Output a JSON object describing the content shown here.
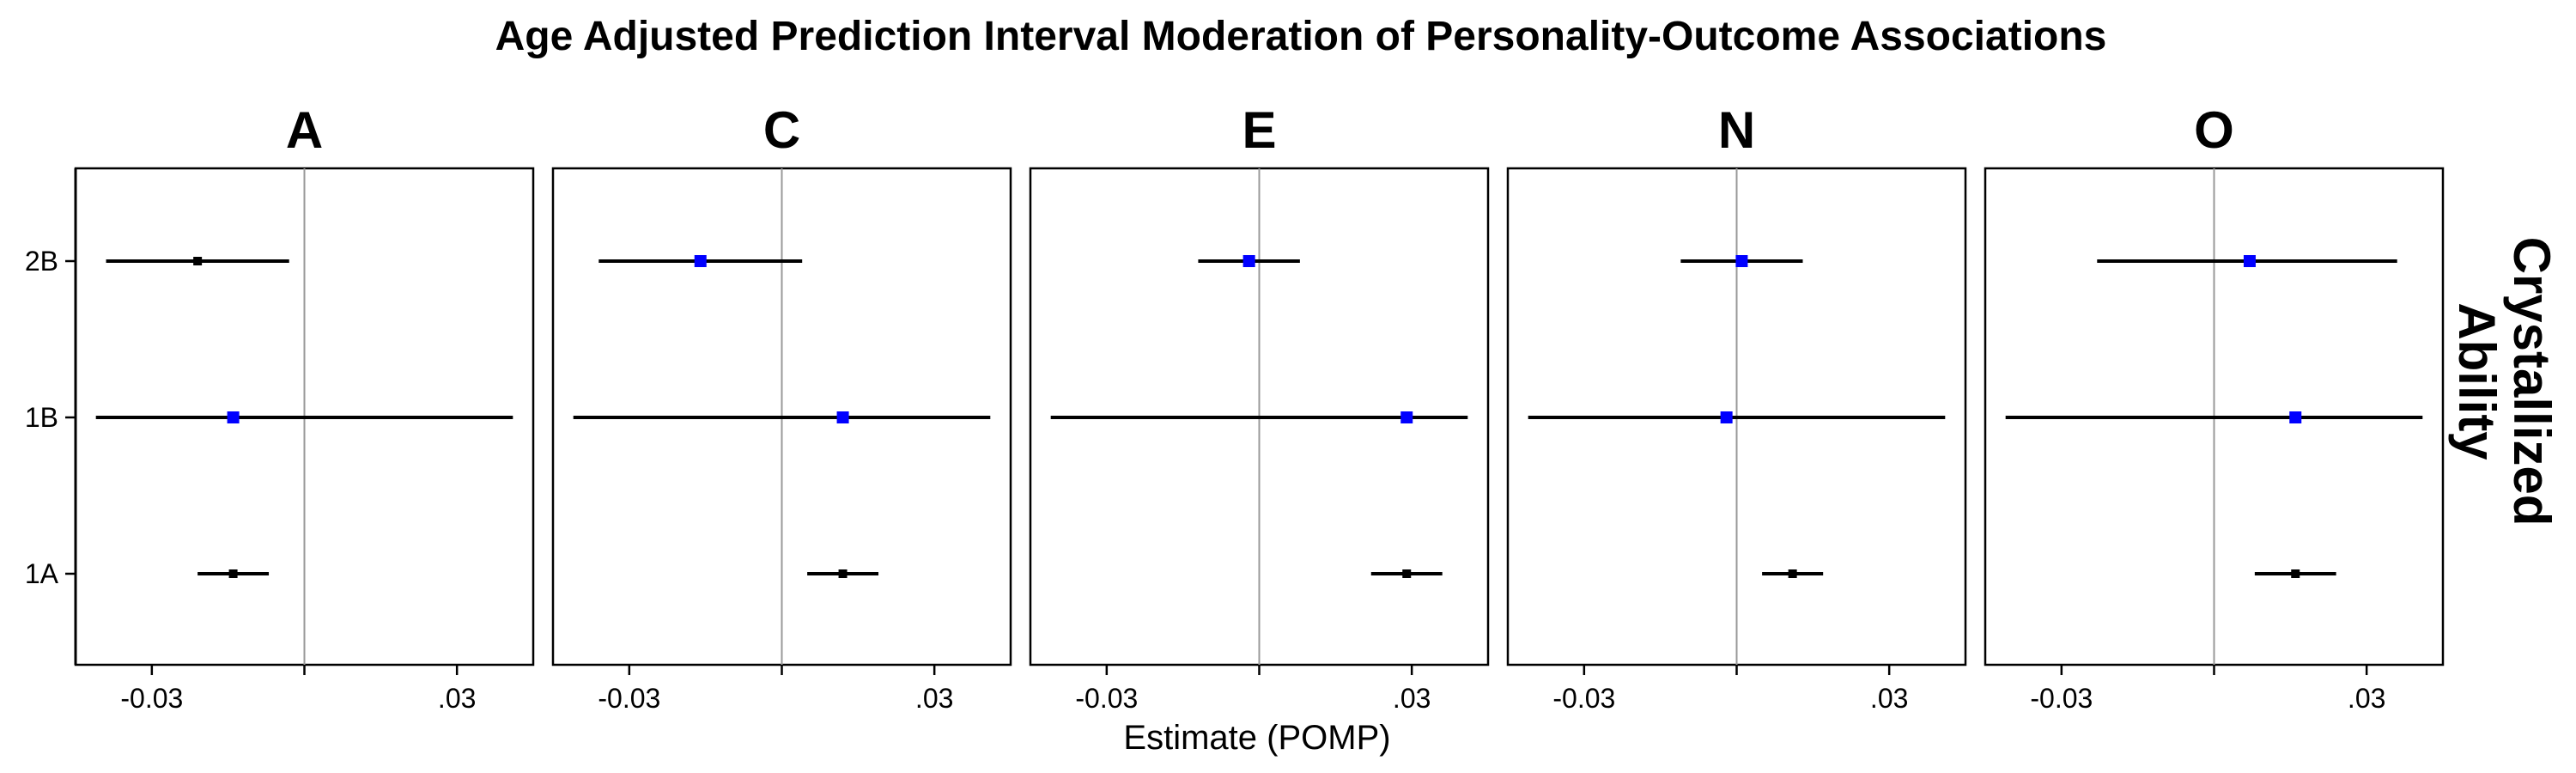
{
  "chart_data": {
    "type": "scatter",
    "subtype": "forest-plot",
    "title": "Age Adjusted Prediction Interval Moderation of Personality-Outcome Associations",
    "xlabel": "Estimate (POMP)",
    "row_label": "Crystallized Ability",
    "x_ticks": [
      {
        "value": -0.03,
        "label": "-0.03"
      },
      {
        "value": 0.03,
        "label": ".03"
      }
    ],
    "xlim": [
      -0.045,
      0.045
    ],
    "categories": [
      "2B",
      "1B",
      "1A"
    ],
    "colors": {
      "highlight": "#0000ff",
      "default": "#000000",
      "ref_line": "#999999"
    },
    "facets": [
      {
        "name": "A",
        "points": [
          {
            "category": "2B",
            "estimate": -0.021,
            "lower": -0.039,
            "upper": -0.003,
            "color": "#000000"
          },
          {
            "category": "1B",
            "estimate": -0.014,
            "lower": -0.041,
            "upper": 0.041,
            "color": "#0000ff"
          },
          {
            "category": "1A",
            "estimate": -0.014,
            "lower": -0.021,
            "upper": -0.007,
            "color": "#000000"
          }
        ]
      },
      {
        "name": "C",
        "points": [
          {
            "category": "2B",
            "estimate": -0.016,
            "lower": -0.036,
            "upper": 0.004,
            "color": "#0000ff"
          },
          {
            "category": "1B",
            "estimate": 0.012,
            "lower": -0.041,
            "upper": 0.041,
            "color": "#0000ff"
          },
          {
            "category": "1A",
            "estimate": 0.012,
            "lower": 0.005,
            "upper": 0.019,
            "color": "#000000"
          }
        ]
      },
      {
        "name": "E",
        "points": [
          {
            "category": "2B",
            "estimate": -0.002,
            "lower": -0.012,
            "upper": 0.008,
            "color": "#0000ff"
          },
          {
            "category": "1B",
            "estimate": 0.029,
            "lower": -0.041,
            "upper": 0.041,
            "color": "#0000ff"
          },
          {
            "category": "1A",
            "estimate": 0.029,
            "lower": 0.022,
            "upper": 0.036,
            "color": "#000000"
          }
        ]
      },
      {
        "name": "N",
        "points": [
          {
            "category": "2B",
            "estimate": 0.001,
            "lower": -0.011,
            "upper": 0.013,
            "color": "#0000ff"
          },
          {
            "category": "1B",
            "estimate": -0.002,
            "lower": -0.041,
            "upper": 0.041,
            "color": "#0000ff"
          },
          {
            "category": "1A",
            "estimate": 0.011,
            "lower": 0.005,
            "upper": 0.017,
            "color": "#000000"
          }
        ]
      },
      {
        "name": "O",
        "points": [
          {
            "category": "2B",
            "estimate": 0.007,
            "lower": -0.023,
            "upper": 0.036,
            "color": "#0000ff"
          },
          {
            "category": "1B",
            "estimate": 0.016,
            "lower": -0.041,
            "upper": 0.041,
            "color": "#0000ff"
          },
          {
            "category": "1A",
            "estimate": 0.016,
            "lower": 0.008,
            "upper": 0.024,
            "color": "#000000"
          }
        ]
      }
    ]
  }
}
